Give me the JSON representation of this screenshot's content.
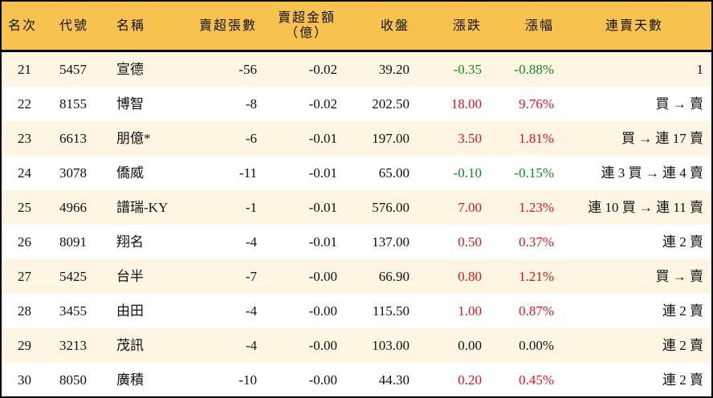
{
  "headers": {
    "rank": "名次",
    "code": "代號",
    "name": "名稱",
    "sell_shares": "賣超張數",
    "sell_amount": "賣超金額",
    "sell_amount_unit": "（億）",
    "close": "收盤",
    "change": "漲跌",
    "pct": "漲幅",
    "streak": "連賣天數"
  },
  "colors": {
    "header_bg": "#F8C24E",
    "odd_row_bg": "#FEF6E3",
    "up": "#E3141B",
    "down": "#128A1E"
  },
  "rows": [
    {
      "rank": "21",
      "code": "5457",
      "name": "宣德",
      "shares": "-56",
      "amount": "-0.02",
      "close": "39.20",
      "change": "-0.35",
      "pct": "-0.88%",
      "dir": "down",
      "streak": "1"
    },
    {
      "rank": "22",
      "code": "8155",
      "name": "博智",
      "shares": "-8",
      "amount": "-0.02",
      "close": "202.50",
      "change": "18.00",
      "pct": "9.76%",
      "dir": "up",
      "streak": "買 → 賣"
    },
    {
      "rank": "23",
      "code": "6613",
      "name": "朋億*",
      "shares": "-6",
      "amount": "-0.01",
      "close": "197.00",
      "change": "3.50",
      "pct": "1.81%",
      "dir": "up",
      "streak": "買 → 連 17 賣"
    },
    {
      "rank": "24",
      "code": "3078",
      "name": "僑威",
      "shares": "-11",
      "amount": "-0.01",
      "close": "65.00",
      "change": "-0.10",
      "pct": "-0.15%",
      "dir": "down",
      "streak": "連 3 買 → 連 4 賣"
    },
    {
      "rank": "25",
      "code": "4966",
      "name": "譜瑞-KY",
      "shares": "-1",
      "amount": "-0.01",
      "close": "576.00",
      "change": "7.00",
      "pct": "1.23%",
      "dir": "up",
      "streak": "連 10 買 → 連 11 賣"
    },
    {
      "rank": "26",
      "code": "8091",
      "name": "翔名",
      "shares": "-4",
      "amount": "-0.01",
      "close": "137.00",
      "change": "0.50",
      "pct": "0.37%",
      "dir": "up",
      "streak": "連 2 賣"
    },
    {
      "rank": "27",
      "code": "5425",
      "name": "台半",
      "shares": "-7",
      "amount": "-0.00",
      "close": "66.90",
      "change": "0.80",
      "pct": "1.21%",
      "dir": "up",
      "streak": "買 → 賣"
    },
    {
      "rank": "28",
      "code": "3455",
      "name": "由田",
      "shares": "-4",
      "amount": "-0.00",
      "close": "115.50",
      "change": "1.00",
      "pct": "0.87%",
      "dir": "up",
      "streak": "連 2 賣"
    },
    {
      "rank": "29",
      "code": "3213",
      "name": "茂訊",
      "shares": "-4",
      "amount": "-0.00",
      "close": "103.00",
      "change": "0.00",
      "pct": "0.00%",
      "dir": "flat",
      "streak": "連 2 賣"
    },
    {
      "rank": "30",
      "code": "8050",
      "name": "廣積",
      "shares": "-10",
      "amount": "-0.00",
      "close": "44.30",
      "change": "0.20",
      "pct": "0.45%",
      "dir": "up",
      "streak": "連 2 賣"
    }
  ]
}
